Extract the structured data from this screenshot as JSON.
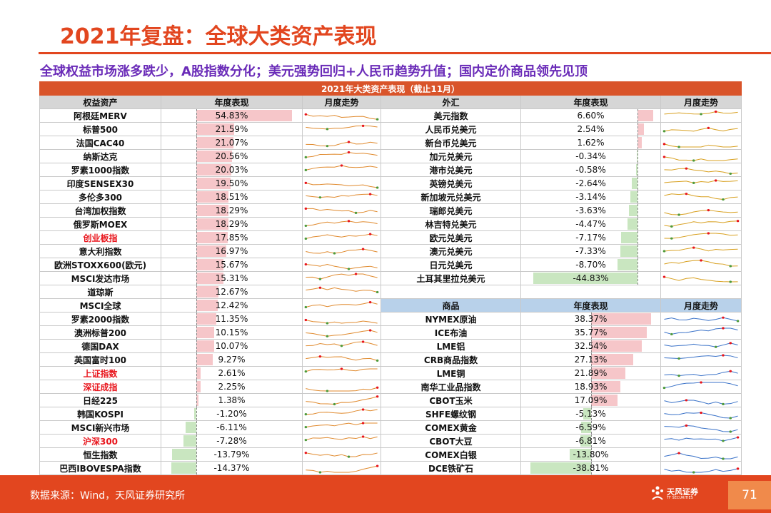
{
  "header": {
    "title": "2021年复盘：全球大类资产表现",
    "subtitle": "全球权益市场涨多跌少，A股指数分化；美元强势回归+人民币趋势升值；国内定价商品领先见顶"
  },
  "table": {
    "caption": "2021年大类资产表现（截止11月）",
    "equity_header": {
      "name": "权益资产",
      "perf": "年度表现",
      "trend": "月度走势"
    },
    "fx_header": {
      "name": "外汇",
      "perf": "年度表现",
      "trend": "月度走势"
    },
    "commodity_header": {
      "name": "商品",
      "perf": "年度表现",
      "trend": "月度走势"
    },
    "equity_rows": [
      {
        "name": "阿根廷MERV",
        "perf": "54.83%",
        "value": 54.83,
        "red": false
      },
      {
        "name": "标普500",
        "perf": "21.59%",
        "value": 21.59,
        "red": false
      },
      {
        "name": "法国CAC40",
        "perf": "21.07%",
        "value": 21.07,
        "red": false
      },
      {
        "name": "纳斯达克",
        "perf": "20.56%",
        "value": 20.56,
        "red": false
      },
      {
        "name": "罗素1000指数",
        "perf": "20.03%",
        "value": 20.03,
        "red": false
      },
      {
        "name": "印度SENSEX30",
        "perf": "19.50%",
        "value": 19.5,
        "red": false
      },
      {
        "name": "多伦多300",
        "perf": "18.51%",
        "value": 18.51,
        "red": false
      },
      {
        "name": "台湾加权指数",
        "perf": "18.29%",
        "value": 18.29,
        "red": false
      },
      {
        "name": "俄罗斯MOEX",
        "perf": "18.29%",
        "value": 18.29,
        "red": false
      },
      {
        "name": "创业板指",
        "perf": "17.85%",
        "value": 17.85,
        "red": true
      },
      {
        "name": "意大利指数",
        "perf": "16.97%",
        "value": 16.97,
        "red": false
      },
      {
        "name": "欧洲STOXX600(欧元)",
        "perf": "15.67%",
        "value": 15.67,
        "red": false
      },
      {
        "name": "MSCI发达市场",
        "perf": "15.31%",
        "value": 15.31,
        "red": false
      },
      {
        "name": "道琼斯",
        "perf": "12.67%",
        "value": 12.67,
        "red": false
      },
      {
        "name": "MSCI全球",
        "perf": "12.42%",
        "value": 12.42,
        "red": false
      },
      {
        "name": "罗素2000指数",
        "perf": "11.35%",
        "value": 11.35,
        "red": false
      },
      {
        "name": "澳洲标普200",
        "perf": "10.15%",
        "value": 10.15,
        "red": false
      },
      {
        "name": "德国DAX",
        "perf": "10.07%",
        "value": 10.07,
        "red": false
      },
      {
        "name": "英国富时100",
        "perf": "9.27%",
        "value": 9.27,
        "red": false
      },
      {
        "name": "上证指数",
        "perf": "2.61%",
        "value": 2.61,
        "red": true
      },
      {
        "name": "深证成指",
        "perf": "2.25%",
        "value": 2.25,
        "red": true
      },
      {
        "name": "日经225",
        "perf": "1.38%",
        "value": 1.38,
        "red": false
      },
      {
        "name": "韩国KOSPI",
        "perf": "-1.20%",
        "value": -1.2,
        "red": false
      },
      {
        "name": "MSCI新兴市场",
        "perf": "-6.11%",
        "value": -6.11,
        "red": false
      },
      {
        "name": "沪深300",
        "perf": "-7.28%",
        "value": -7.28,
        "red": true
      },
      {
        "name": "恒生指数",
        "perf": "-13.79%",
        "value": -13.79,
        "red": false
      },
      {
        "name": "巴西IBOVESPA指数",
        "perf": "-14.37%",
        "value": -14.37,
        "red": false
      }
    ],
    "fx_rows": [
      {
        "name": "美元指数",
        "perf": "6.60%",
        "value": 6.6
      },
      {
        "name": "人民币兑美元",
        "perf": "2.54%",
        "value": 2.54
      },
      {
        "name": "新台币兑美元",
        "perf": "1.62%",
        "value": 1.62
      },
      {
        "name": "加元兑美元",
        "perf": "-0.34%",
        "value": -0.34
      },
      {
        "name": "港市兑美元",
        "perf": "-0.58%",
        "value": -0.58
      },
      {
        "name": "英镑兑美元",
        "perf": "-2.64%",
        "value": -2.64
      },
      {
        "name": "新加坡元兑美元",
        "perf": "-3.14%",
        "value": -3.14
      },
      {
        "name": "瑞郎兑美元",
        "perf": "-3.63%",
        "value": -3.63
      },
      {
        "name": "林吉特兑美元",
        "perf": "-4.47%",
        "value": -4.47
      },
      {
        "name": "欧元兑美元",
        "perf": "-7.17%",
        "value": -7.17
      },
      {
        "name": "澳元兑美元",
        "perf": "-7.33%",
        "value": -7.33
      },
      {
        "name": "日元兑美元",
        "perf": "-8.70%",
        "value": -8.7
      },
      {
        "name": "土耳其里拉兑美元",
        "perf": "-44.83%",
        "value": -44.83
      }
    ],
    "commodity_rows": [
      {
        "name": "NYMEX原油",
        "perf": "38.37%",
        "value": 38.37
      },
      {
        "name": "ICE布油",
        "perf": "35.77%",
        "value": 35.77
      },
      {
        "name": "LME铝",
        "perf": "32.54%",
        "value": 32.54
      },
      {
        "name": "CRB商品指数",
        "perf": "27.13%",
        "value": 27.13
      },
      {
        "name": "LME铜",
        "perf": "21.89%",
        "value": 21.89
      },
      {
        "name": "南华工业品指数",
        "perf": "18.93%",
        "value": 18.93
      },
      {
        "name": "CBOT玉米",
        "perf": "17.09%",
        "value": 17.09
      },
      {
        "name": "SHFE螺纹钢",
        "perf": "-5.13%",
        "value": -5.13
      },
      {
        "name": "COMEX黄金",
        "perf": "-6.59%",
        "value": -6.59
      },
      {
        "name": "CBOT大豆",
        "perf": "-6.81%",
        "value": -6.81
      },
      {
        "name": "COMEX白银",
        "perf": "-13.80%",
        "value": -13.8
      },
      {
        "name": "DCE铁矿石",
        "perf": "-38.81%",
        "value": -38.81
      }
    ],
    "colors": {
      "equity_trend": "#e08a2e",
      "fx_trend": "#d8a020",
      "commodity_trend": "#3a72c8",
      "positive_bar": "#f6c6c9",
      "negative_bar": "#c9e6c0",
      "max_marker": "#e8151c",
      "min_marker": "#4e9a3a"
    }
  },
  "footer": {
    "source": "数据来源：Wind，天风证券研究所",
    "logo_text": "天风证券",
    "logo_sub": "TF SECURITIES",
    "page": "71"
  }
}
